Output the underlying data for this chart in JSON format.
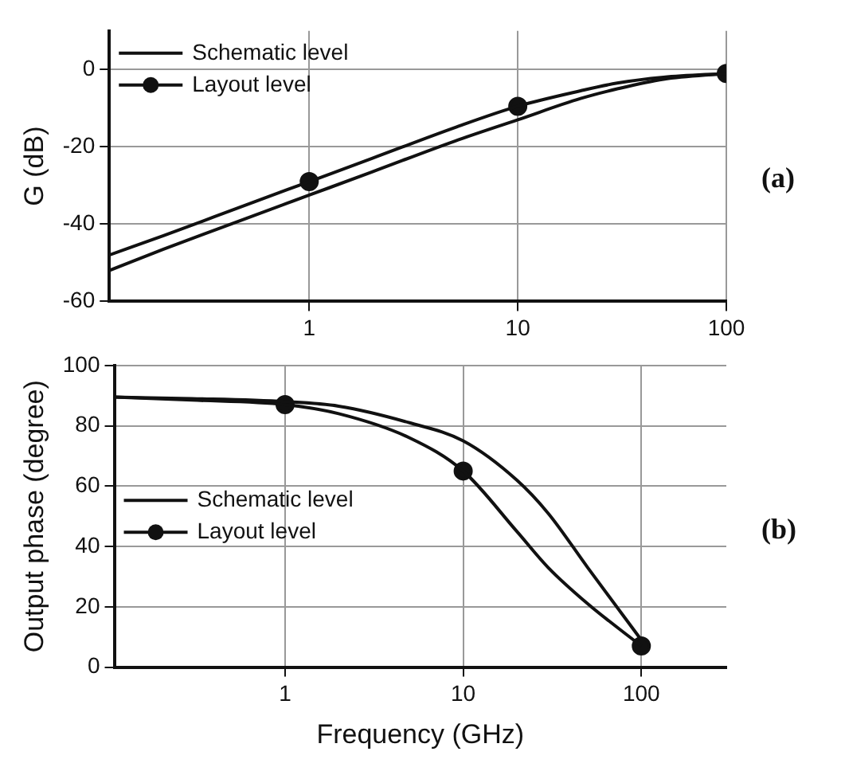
{
  "chart_data": [
    {
      "type": "line",
      "ylabel": "G (dB)",
      "log": "x",
      "xlim": [
        0.11,
        100
      ],
      "xticks": [
        1,
        10,
        100
      ],
      "ylim": [
        -60,
        10
      ],
      "yticks": [
        -60,
        -40,
        -20,
        0
      ],
      "grid": true,
      "legend": "top left",
      "line_style": "solid",
      "annotations": [
        "(a)"
      ],
      "series": [
        {
          "name": "Schematic level",
          "color": "#111111",
          "marker": "none",
          "x": [
            0.11,
            0.2,
            0.5,
            1,
            2,
            5,
            10,
            20,
            30,
            50,
            100
          ],
          "values": [
            -52,
            -46.5,
            -38.5,
            -32.5,
            -26.5,
            -18.5,
            -13,
            -7.5,
            -5,
            -2.5,
            -1
          ]
        },
        {
          "color": "#111111",
          "marker": "none",
          "x": [
            0.11,
            0.2,
            0.5,
            1,
            2,
            5,
            10,
            20,
            30,
            50,
            100
          ],
          "values": [
            -48,
            -43,
            -35,
            -29,
            -23,
            -15,
            -9.5,
            -5.5,
            -3.5,
            -2,
            -1
          ]
        },
        {
          "type": "scatter",
          "name": "Layout level",
          "color": "#111111",
          "marker": "circle",
          "x": [
            1,
            10,
            100
          ],
          "values": [
            -29,
            -9.5,
            -1
          ]
        }
      ]
    },
    {
      "type": "line",
      "xlabel": "Frequency (GHz)",
      "ylabel": "Output phase (degree)",
      "log": "x",
      "xlim": [
        0.11,
        300
      ],
      "xticks": [
        1,
        10,
        100
      ],
      "ylim": [
        0,
        100
      ],
      "yticks": [
        0,
        20,
        40,
        60,
        80,
        100
      ],
      "grid": true,
      "legend": "left",
      "line_style": "solid",
      "annotations": [
        "(b)"
      ],
      "series": [
        {
          "name": "Schematic level",
          "color": "#111111",
          "marker": "none",
          "x": [
            0.11,
            0.3,
            1,
            2,
            5,
            10,
            20,
            30,
            50,
            100
          ],
          "values": [
            89.5,
            89,
            88,
            86.5,
            81,
            75,
            62,
            51,
            33,
            9
          ]
        },
        {
          "color": "#111111",
          "marker": "none",
          "x": [
            0.11,
            0.3,
            1,
            2,
            5,
            10,
            20,
            30,
            50,
            100
          ],
          "values": [
            89.5,
            88.5,
            87,
            84,
            76,
            65,
            45,
            33,
            21,
            7
          ]
        },
        {
          "type": "scatter",
          "name": "Layout level",
          "color": "#111111",
          "marker": "circle",
          "x": [
            1,
            10,
            100
          ],
          "values": [
            87,
            65,
            7
          ]
        }
      ]
    }
  ]
}
